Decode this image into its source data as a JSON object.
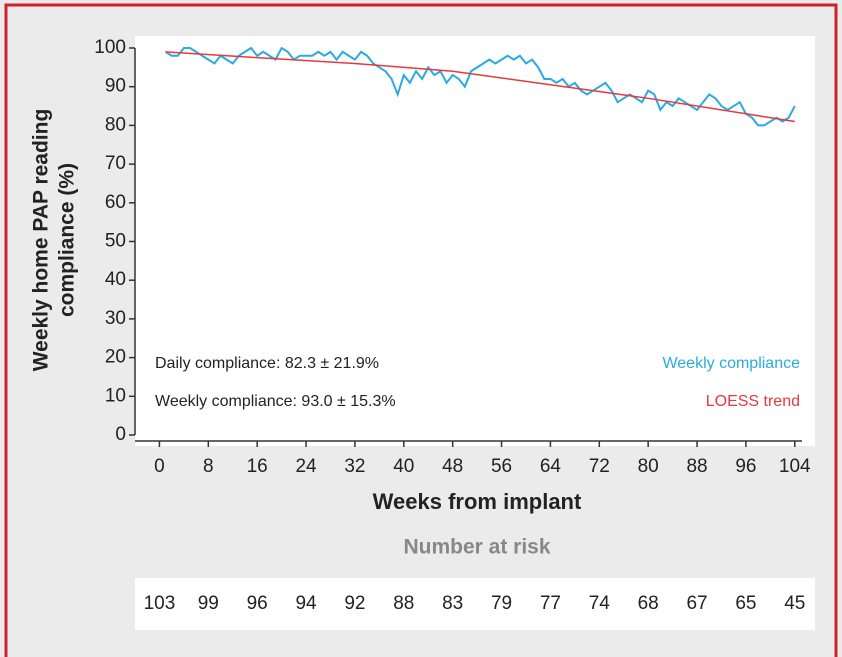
{
  "chart_data": {
    "type": "line",
    "ylabel": [
      "Weekly home PAP reading",
      "compliance (%)"
    ],
    "xlabel": "Weeks from implant",
    "annotations": [
      "Daily compliance: 82.3 ± 21.9%",
      "Weekly compliance: 93.0 ± 15.3%"
    ],
    "xlim": [
      -4,
      106
    ],
    "xticks": [
      0,
      8,
      16,
      24,
      32,
      40,
      48,
      56,
      64,
      72,
      80,
      88,
      96,
      104
    ],
    "ylim": [
      0,
      100
    ],
    "yticks": [
      0,
      10,
      20,
      30,
      40,
      50,
      60,
      70,
      80,
      90,
      100
    ],
    "series": [
      {
        "name": "Weekly compliance",
        "color": "#29abe2",
        "x": [
          1,
          2,
          3,
          4,
          5,
          6,
          7,
          8,
          9,
          10,
          11,
          12,
          13,
          14,
          15,
          16,
          17,
          18,
          19,
          20,
          21,
          22,
          23,
          24,
          25,
          26,
          27,
          28,
          29,
          30,
          31,
          32,
          33,
          34,
          35,
          36,
          37,
          38,
          39,
          40,
          41,
          42,
          43,
          44,
          45,
          46,
          47,
          48,
          49,
          50,
          51,
          52,
          53,
          54,
          55,
          56,
          57,
          58,
          59,
          60,
          61,
          62,
          63,
          64,
          65,
          66,
          67,
          68,
          69,
          70,
          71,
          72,
          73,
          74,
          75,
          76,
          77,
          78,
          79,
          80,
          81,
          82,
          83,
          84,
          85,
          86,
          87,
          88,
          89,
          90,
          91,
          92,
          93,
          94,
          95,
          96,
          97,
          98,
          99,
          100,
          101,
          102,
          103,
          104
        ],
        "values": [
          99,
          98,
          98,
          100,
          100,
          99,
          98,
          97,
          96,
          98,
          97,
          96,
          98,
          99,
          100,
          98,
          99,
          98,
          97,
          100,
          99,
          97,
          98,
          98,
          98,
          99,
          98,
          99,
          97,
          99,
          98,
          97,
          99,
          98,
          96,
          95,
          94,
          92,
          88,
          93,
          91,
          94,
          92,
          95,
          93,
          94,
          91,
          93,
          92,
          90,
          94,
          95,
          96,
          97,
          96,
          97,
          98,
          97,
          98,
          96,
          97,
          95,
          92,
          92,
          91,
          92,
          90,
          91,
          89,
          88,
          89,
          90,
          91,
          89,
          86,
          87,
          88,
          87,
          86,
          89,
          88,
          84,
          86,
          85,
          87,
          86,
          85,
          84,
          86,
          88,
          87,
          85,
          84,
          85,
          86,
          83,
          82,
          80,
          80,
          81,
          82,
          81,
          82,
          85
        ]
      },
      {
        "name": "LOESS trend",
        "color": "#e8383d",
        "x": [
          1,
          16,
          32,
          48,
          64,
          80,
          96,
          104
        ],
        "values": [
          99,
          97.5,
          96,
          94,
          90.5,
          87,
          83,
          81
        ]
      }
    ],
    "risk_title": "Number at risk",
    "at_risk": [
      103,
      99,
      96,
      94,
      92,
      88,
      83,
      79,
      77,
      74,
      68,
      67,
      65,
      45
    ]
  }
}
